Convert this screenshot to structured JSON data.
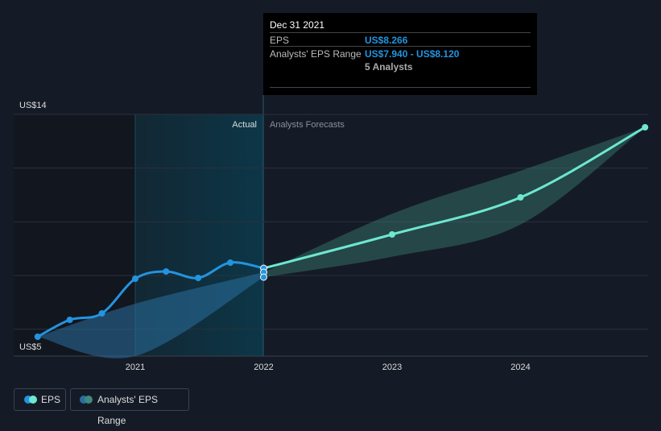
{
  "tooltip": {
    "date": "Dec 31 2021",
    "eps_label": "EPS",
    "eps_value": "US$8.266",
    "range_label": "Analysts' EPS Range",
    "range_value": "US$7.940 - US$8.120",
    "analysts": "5 Analysts"
  },
  "labels": {
    "actual": "Actual",
    "forecast": "Analysts Forecasts"
  },
  "legend": {
    "eps": "EPS",
    "range": "Analysts' EPS Range"
  },
  "colors": {
    "eps_past": "#2394df",
    "eps_future": "#6ee7d1",
    "range_past": "#2a6f9e",
    "range_future": "#3f8a7c",
    "bg": "#151b26"
  },
  "chart_data": {
    "type": "line",
    "ylim": [
      5,
      14
    ],
    "y_tick_labels": [
      "US$14",
      "US$5"
    ],
    "x_tick_labels": [
      "2021",
      "2022",
      "2023",
      "2024"
    ],
    "eps_actual": {
      "x": [
        2020.24,
        2020.49,
        2020.74,
        2021.0,
        2021.24,
        2021.49,
        2021.74,
        2022.0
      ],
      "y": [
        5.72,
        6.35,
        6.59,
        7.88,
        8.15,
        7.91,
        8.48,
        8.27
      ]
    },
    "eps_forecast": {
      "x": [
        2022.0,
        2023.0,
        2024.0,
        2024.97
      ],
      "y": [
        8.27,
        9.53,
        10.91,
        13.52
      ]
    },
    "range_past": {
      "x": [
        2020.24,
        2021.0,
        2022.0
      ],
      "upper": [
        5.72,
        6.95,
        8.12
      ],
      "lower": [
        5.72,
        5.0,
        7.94
      ]
    },
    "range_forecast": {
      "x": [
        2022.0,
        2023.0,
        2024.0,
        2024.97
      ],
      "upper": [
        8.12,
        10.3,
        11.9,
        13.52
      ],
      "lower": [
        7.94,
        8.7,
        9.9,
        13.52
      ]
    }
  }
}
